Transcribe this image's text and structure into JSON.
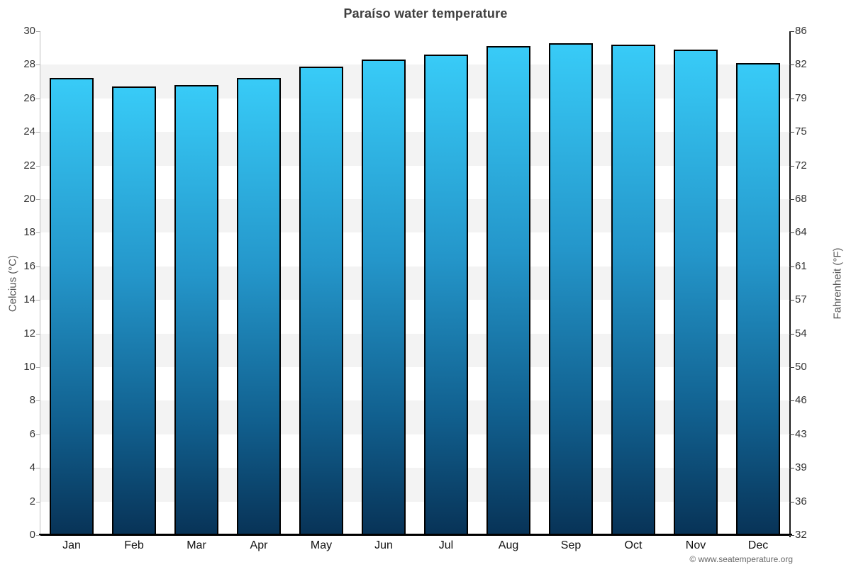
{
  "title": "Paraíso water temperature",
  "credit": "© www.seatemperature.org",
  "y_axis_left": {
    "label": "Celcius (°C)",
    "ticks": [
      0,
      2,
      4,
      6,
      8,
      10,
      12,
      14,
      16,
      18,
      20,
      22,
      24,
      26,
      28,
      30
    ]
  },
  "y_axis_right": {
    "label": "Fahrenheit (°F)",
    "ticks": [
      32,
      36,
      39,
      43,
      46,
      50,
      54,
      57,
      61,
      64,
      68,
      72,
      75,
      79,
      82,
      86
    ]
  },
  "chart_data": {
    "type": "bar",
    "title": "Paraíso water temperature",
    "categories": [
      "Jan",
      "Feb",
      "Mar",
      "Apr",
      "May",
      "Jun",
      "Jul",
      "Aug",
      "Sep",
      "Oct",
      "Nov",
      "Dec"
    ],
    "values": [
      27.2,
      26.7,
      26.8,
      27.2,
      27.9,
      28.3,
      28.6,
      29.1,
      29.3,
      29.2,
      28.9,
      28.1
    ],
    "unit": "°C",
    "xlabel": "",
    "ylabel": "Celcius (°C)",
    "ylabel_right": "Fahrenheit (°F)",
    "ylim": [
      0,
      30
    ],
    "y_tick_step": 2,
    "legend": "none",
    "grid": "alternating horizontal bands every 2°C",
    "band_pattern_bottom_up": [
      "white",
      "gray"
    ],
    "bar_border_color": "#000000"
  },
  "colors": {
    "bar_gradient_top": "#38cbf7",
    "bar_gradient_mid": "#2496ca",
    "bar_gradient_low": "#11608f",
    "bar_gradient_bottom": "#083357",
    "band_gray": "#f3f3f3",
    "band_white": "#ffffff",
    "title_color": "#3f3f3f",
    "axis_title_color": "#555555",
    "tick_label_color": "#333333",
    "month_label_color": "#111111",
    "credit_color": "#666666"
  }
}
